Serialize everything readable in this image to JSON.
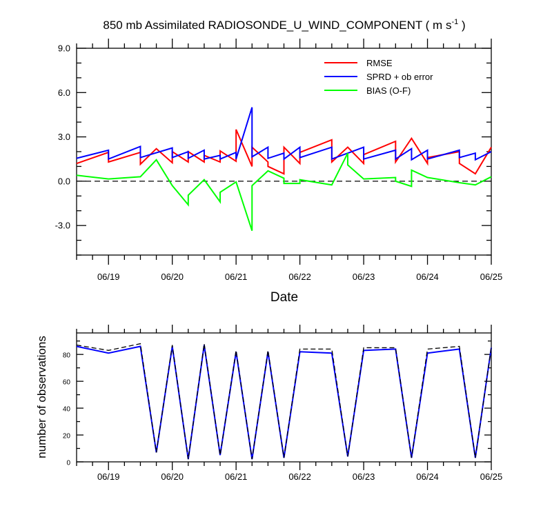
{
  "chart_data": [
    {
      "type": "line",
      "title": "850 mb Assimilated RADIOSONDE_U_WIND_COMPONENT ( m s",
      "title_superscript": "-1",
      "title_close": " )",
      "xlabel": "Date",
      "ylabel": "",
      "xlim": [
        "06/18 12:00",
        "06/25 00:00"
      ],
      "ylim": [
        -5.0,
        9.0
      ],
      "xticks": [
        "06/19",
        "06/20",
        "06/21",
        "06/22",
        "06/23",
        "06/24",
        "06/25"
      ],
      "yticks": [
        "-3.0",
        "0.0",
        "3.0",
        "6.0",
        "9.0"
      ],
      "zero_line": "dashed",
      "legend_position": "top-right",
      "colors": {
        "rmse": "#ff0000",
        "sprd": "#0000ff",
        "bias": "#00ff00"
      },
      "series": [
        {
          "name": "RMSE",
          "key": "rmse",
          "x": [
            "06/18 12:00",
            "06/19 00:00",
            "06/19 00:00",
            "06/19 12:00",
            "06/19 12:00",
            "06/19 18:00",
            "06/20 00:00",
            "06/20 00:00",
            "06/20 06:00",
            "06/20 06:00",
            "06/20 12:00",
            "06/20 12:00",
            "06/20 18:00",
            "06/20 18:00",
            "06/21 00:00",
            "06/21 00:00",
            "06/21 06:00",
            "06/21 06:00",
            "06/21 12:00",
            "06/21 12:00",
            "06/21 18:00",
            "06/21 18:00",
            "06/22 00:00",
            "06/22 00:00",
            "06/22 12:00",
            "06/22 12:00",
            "06/22 18:00",
            "06/23 00:00",
            "06/23 00:00",
            "06/23 12:00",
            "06/23 12:00",
            "06/23 18:00",
            "06/24 00:00",
            "06/24 00:00",
            "06/24 12:00",
            "06/24 12:00",
            "06/24 18:00",
            "06/25 00:00"
          ],
          "values": [
            1.2,
            1.95,
            1.3,
            1.95,
            1.15,
            2.2,
            1.25,
            2.0,
            1.3,
            2.0,
            1.3,
            1.75,
            1.3,
            2.05,
            1.35,
            3.5,
            1.0,
            2.3,
            1.3,
            1.0,
            0.5,
            2.3,
            1.2,
            1.95,
            2.8,
            1.3,
            2.3,
            1.2,
            1.8,
            2.7,
            1.3,
            2.9,
            1.2,
            1.6,
            2.0,
            1.2,
            0.5,
            2.3
          ]
        },
        {
          "name": "SPRD + ob error",
          "key": "sprd",
          "x": [
            "06/18 12:00",
            "06/19 00:00",
            "06/19 00:00",
            "06/19 12:00",
            "06/19 12:00",
            "06/20 00:00",
            "06/20 00:00",
            "06/20 06:00",
            "06/20 06:00",
            "06/20 12:00",
            "06/20 12:00",
            "06/20 18:00",
            "06/20 18:00",
            "06/21 00:00",
            "06/21 00:00",
            "06/21 06:00",
            "06/21 06:00",
            "06/21 12:00",
            "06/21 12:00",
            "06/21 18:00",
            "06/21 18:00",
            "06/22 00:00",
            "06/22 00:00",
            "06/22 12:00",
            "06/22 12:00",
            "06/23 00:00",
            "06/23 00:00",
            "06/23 12:00",
            "06/23 12:00",
            "06/23 18:00",
            "06/23 18:00",
            "06/24 00:00",
            "06/24 00:00",
            "06/24 12:00",
            "06/24 12:00",
            "06/24 18:00",
            "06/24 18:00",
            "06/25 00:00"
          ],
          "values": [
            1.55,
            2.1,
            1.5,
            2.35,
            1.6,
            2.25,
            1.6,
            2.0,
            1.55,
            2.1,
            1.5,
            1.75,
            1.5,
            1.95,
            1.5,
            5.0,
            1.65,
            2.3,
            1.55,
            1.9,
            1.5,
            2.3,
            1.6,
            2.3,
            1.5,
            2.3,
            1.5,
            2.1,
            1.5,
            2.2,
            1.45,
            2.1,
            1.5,
            2.1,
            1.6,
            1.9,
            1.45,
            2.0
          ]
        },
        {
          "name": "BIAS (O-F)",
          "key": "bias",
          "x": [
            "06/18 12:00",
            "06/19 00:00",
            "06/19 12:00",
            "06/19 12:00",
            "06/19 18:00",
            "06/20 00:00",
            "06/20 06:00",
            "06/20 06:00",
            "06/20 12:00",
            "06/20 18:00",
            "06/20 18:00",
            "06/21 00:00",
            "06/21 06:00",
            "06/21 06:00",
            "06/21 12:00",
            "06/21 18:00",
            "06/21 18:00",
            "06/22 00:00",
            "06/22 00:00",
            "06/22 12:00",
            "06/22 18:00",
            "06/22 18:00",
            "06/23 00:00",
            "06/23 12:00",
            "06/23 12:00",
            "06/23 18:00",
            "06/23 18:00",
            "06/24 00:00",
            "06/24 12:00",
            "06/24 18:00",
            "06/25 00:00"
          ],
          "values": [
            0.4,
            0.15,
            0.3,
            0.3,
            1.45,
            -0.3,
            -1.6,
            -0.95,
            0.1,
            -1.4,
            -0.75,
            -0.05,
            -3.35,
            -0.3,
            0.7,
            0.2,
            -0.15,
            -0.15,
            0.1,
            -0.25,
            1.9,
            1.1,
            0.15,
            0.25,
            0.0,
            -0.35,
            0.75,
            0.25,
            -0.1,
            -0.25,
            0.3
          ]
        }
      ]
    },
    {
      "type": "line",
      "title": "",
      "xlabel": "",
      "ylabel": "number of observations",
      "xlim": [
        "06/18 12:00",
        "06/25 00:00"
      ],
      "ylim": [
        0,
        96
      ],
      "xticks": [
        "06/19",
        "06/20",
        "06/21",
        "06/22",
        "06/23",
        "06/24",
        "06/25"
      ],
      "yticks": [
        "0",
        "20",
        "40",
        "60",
        "80"
      ],
      "colors": {
        "used": "#0000ff",
        "total": "#000000"
      },
      "series": [
        {
          "key": "used",
          "style": "solid",
          "x": [
            "06/18 12:00",
            "06/19 00:00",
            "06/19 12:00",
            "06/19 18:00",
            "06/20 00:00",
            "06/20 06:00",
            "06/20 12:00",
            "06/20 18:00",
            "06/21 00:00",
            "06/21 06:00",
            "06/21 12:00",
            "06/21 18:00",
            "06/22 00:00",
            "06/22 12:00",
            "06/22 18:00",
            "06/23 00:00",
            "06/23 12:00",
            "06/23 18:00",
            "06/24 00:00",
            "06/24 12:00",
            "06/24 18:00",
            "06/25 00:00"
          ],
          "values": [
            86,
            81,
            86,
            7,
            86,
            2,
            87,
            5,
            82,
            2,
            82,
            3,
            82,
            81,
            4,
            83,
            84,
            3,
            81,
            84,
            3,
            85
          ]
        },
        {
          "key": "total",
          "style": "dashed",
          "x": [
            "06/18 12:00",
            "06/19 00:00",
            "06/19 12:00",
            "06/19 18:00",
            "06/20 00:00",
            "06/20 06:00",
            "06/20 12:00",
            "06/20 18:00",
            "06/21 00:00",
            "06/21 06:00",
            "06/21 12:00",
            "06/21 18:00",
            "06/22 00:00",
            "06/22 12:00",
            "06/22 18:00",
            "06/23 00:00",
            "06/23 12:00",
            "06/23 18:00",
            "06/24 00:00",
            "06/24 12:00",
            "06/24 18:00",
            "06/25 00:00"
          ],
          "values": [
            87,
            83,
            88,
            7,
            87,
            2,
            88,
            5,
            83,
            2,
            83,
            3,
            84,
            84,
            4,
            85,
            85,
            3,
            84,
            86,
            3,
            85
          ]
        }
      ]
    }
  ]
}
